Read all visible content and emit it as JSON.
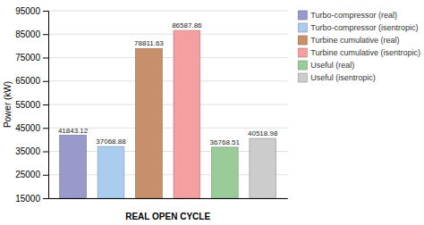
{
  "chart_data": {
    "type": "bar",
    "categories": [
      "Turbo-compressor (real)",
      "Turbo-compressor (isentropic)",
      "Turbine cumulative (real)",
      "Turbine cumulative (isentropic)",
      "Useful (real)",
      "Useful (isentropic)"
    ],
    "values": [
      41843.12,
      37068.88,
      78811.63,
      86587.86,
      36768.51,
      40518.98
    ],
    "colors": [
      "#9999cc",
      "#aaccee",
      "#c8906a",
      "#f4a0a0",
      "#99cc99",
      "#cccccc"
    ],
    "xlabel": "REAL OPEN CYCLE",
    "ylabel": "Power (kW)",
    "ylim": [
      15000,
      95000
    ],
    "yticks": [
      15000,
      25000,
      35000,
      45000,
      55000,
      65000,
      75000,
      85000,
      95000
    ],
    "grid": true,
    "legend": "upper right",
    "data_labels": true,
    "tick_labels": "y"
  }
}
